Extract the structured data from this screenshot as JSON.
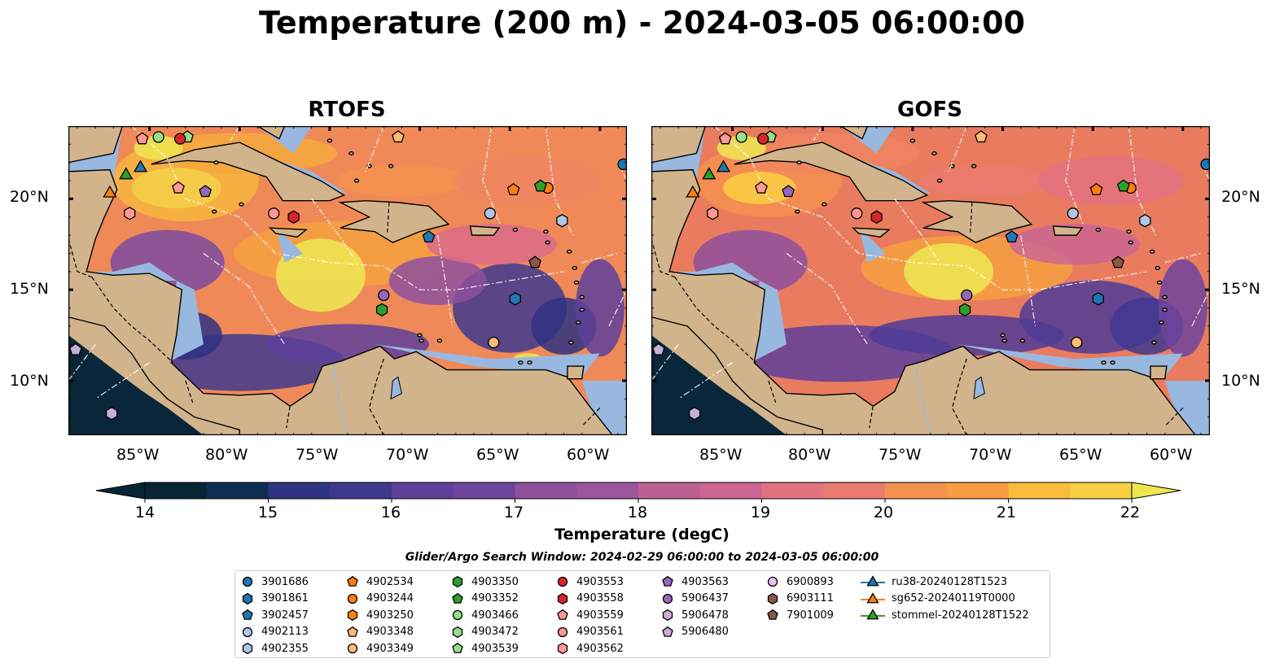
{
  "title": "Temperature (200 m) - 2024-03-05 06:00:00",
  "panels": [
    {
      "title": "RTOFS"
    },
    {
      "title": "GOFS"
    }
  ],
  "lon_ticks": [
    "85°W",
    "80°W",
    "75°W",
    "70°W",
    "65°W",
    "60°W"
  ],
  "lat_ticks": [
    "20°N",
    "15°N",
    "10°N"
  ],
  "map_extent": {
    "lon": [
      -89.5,
      -58.5
    ],
    "lat": [
      7,
      24
    ]
  },
  "colorbar": {
    "label": "Temperature (degC)",
    "ticks": [
      "14",
      "15",
      "16",
      "17",
      "18",
      "19",
      "20",
      "21",
      "22"
    ],
    "range": [
      14,
      22
    ],
    "colors": [
      "#082538",
      "#0f2c52",
      "#1e2e70",
      "#2f3383",
      "#3f388f",
      "#4f3c96",
      "#5e409a",
      "#6e449c",
      "#7e4a9d",
      "#8e509d",
      "#9d569c",
      "#ad5c99",
      "#bd6195",
      "#cb6690",
      "#da6b8a",
      "#e37280",
      "#ea7b70",
      "#f08561",
      "#f5914f",
      "#f89d42",
      "#f9ac3b",
      "#fabc3c",
      "#f8cf42",
      "#efe752"
    ]
  },
  "search_window": "Glider/Argo Search Window: 2024-02-29 06:00:00 to 2024-03-05 06:00:00",
  "legend": [
    {
      "label": "3901686",
      "marker": "circle",
      "color": "#1f77b4"
    },
    {
      "label": "3901861",
      "marker": "hexagon",
      "color": "#1f77b4"
    },
    {
      "label": "3902457",
      "marker": "pentagon",
      "color": "#1f77b4"
    },
    {
      "label": "4902113",
      "marker": "circle",
      "color": "#aec7e8"
    },
    {
      "label": "4902355",
      "marker": "hexagon",
      "color": "#aec7e8"
    },
    {
      "label": "4902534",
      "marker": "pentagon",
      "color": "#ff7f0e"
    },
    {
      "label": "4903244",
      "marker": "circle",
      "color": "#ff7f0e"
    },
    {
      "label": "4903250",
      "marker": "hexagon",
      "color": "#ff7f0e"
    },
    {
      "label": "4903348",
      "marker": "pentagon",
      "color": "#ffbb78"
    },
    {
      "label": "4903349",
      "marker": "circle",
      "color": "#ffbb78"
    },
    {
      "label": "4903350",
      "marker": "hexagon",
      "color": "#2ca02c"
    },
    {
      "label": "4903352",
      "marker": "pentagon",
      "color": "#2ca02c"
    },
    {
      "label": "4903466",
      "marker": "circle",
      "color": "#98df8a"
    },
    {
      "label": "4903472",
      "marker": "hexagon",
      "color": "#98df8a"
    },
    {
      "label": "4903539",
      "marker": "pentagon",
      "color": "#98df8a"
    },
    {
      "label": "4903553",
      "marker": "circle",
      "color": "#d62728"
    },
    {
      "label": "4903558",
      "marker": "hexagon",
      "color": "#d62728"
    },
    {
      "label": "4903559",
      "marker": "pentagon",
      "color": "#ff9896"
    },
    {
      "label": "4903561",
      "marker": "circle",
      "color": "#ff9896"
    },
    {
      "label": "4903562",
      "marker": "hexagon",
      "color": "#ff9896"
    },
    {
      "label": "4903563",
      "marker": "pentagon",
      "color": "#9467bd"
    },
    {
      "label": "5906437",
      "marker": "circle",
      "color": "#9467bd"
    },
    {
      "label": "5906478",
      "marker": "hexagon",
      "color": "#c5b0d5"
    },
    {
      "label": "5906480",
      "marker": "pentagon",
      "color": "#c5b0d5"
    },
    {
      "label": "6900893",
      "marker": "circle",
      "color": "#e5c0f0"
    },
    {
      "label": "6903111",
      "marker": "hexagon",
      "color": "#8c564b"
    },
    {
      "label": "7901009",
      "marker": "pentagon",
      "color": "#8c564b"
    },
    {
      "label": "ru38-20240128T1523",
      "marker": "line-triangle",
      "color": "#1f77b4"
    },
    {
      "label": "sg652-20240119T0000",
      "marker": "line-triangle",
      "color": "#ff7f0e"
    },
    {
      "label": "stommel-20240128T1522",
      "marker": "line-triangle",
      "color": "#2ca02c"
    }
  ],
  "floats": [
    {
      "id": "3901686",
      "lon": -58.7,
      "lat": 21.9
    },
    {
      "id": "3901861",
      "lon": -64.7,
      "lat": 14.5
    },
    {
      "id": "3902457",
      "lon": -69.5,
      "lat": 17.9
    },
    {
      "id": "4902113",
      "lon": -66.1,
      "lat": 19.2
    },
    {
      "id": "4902355",
      "lon": -62.1,
      "lat": 18.8
    },
    {
      "id": "4902534",
      "lon": -64.8,
      "lat": 20.5
    },
    {
      "id": "4903244",
      "lon": -62.9,
      "lat": 20.6
    },
    {
      "id": "4903348",
      "lon": -71.2,
      "lat": 23.4
    },
    {
      "id": "4903349",
      "lon": -65.9,
      "lat": 12.1
    },
    {
      "id": "4903350",
      "lon": -72.1,
      "lat": 13.9
    },
    {
      "id": "4903352",
      "lon": -63.3,
      "lat": 20.7
    },
    {
      "id": "4903466",
      "lon": -84.5,
      "lat": 23.4
    },
    {
      "id": "4903539",
      "lon": -82.9,
      "lat": 23.4
    },
    {
      "id": "4903553",
      "lon": -83.3,
      "lat": 23.3
    },
    {
      "id": "4903558",
      "lon": -77.0,
      "lat": 19.0
    },
    {
      "id": "4903559",
      "lon": -83.4,
      "lat": 20.6
    },
    {
      "id": "4903559",
      "lon": -85.4,
      "lat": 23.3
    },
    {
      "id": "4903561",
      "lon": -78.1,
      "lat": 19.2
    },
    {
      "id": "4903562",
      "lon": -86.1,
      "lat": 19.2
    },
    {
      "id": "4903563",
      "lon": -81.9,
      "lat": 20.4
    },
    {
      "id": "5906437",
      "lon": -72.0,
      "lat": 14.7
    },
    {
      "id": "5906478",
      "lon": -87.1,
      "lat": 8.2
    },
    {
      "id": "5906480",
      "lon": -89.1,
      "lat": 11.7
    },
    {
      "id": "7901009",
      "lon": -63.6,
      "lat": 16.5
    }
  ],
  "gliders": [
    {
      "id": "ru38-20240128T1523",
      "lon": -85.5,
      "lat": 21.7
    },
    {
      "id": "sg652-20240119T0000",
      "lon": -87.2,
      "lat": 20.3
    },
    {
      "id": "stommel-20240128T1522",
      "lon": -86.3,
      "lat": 21.3
    }
  ]
}
